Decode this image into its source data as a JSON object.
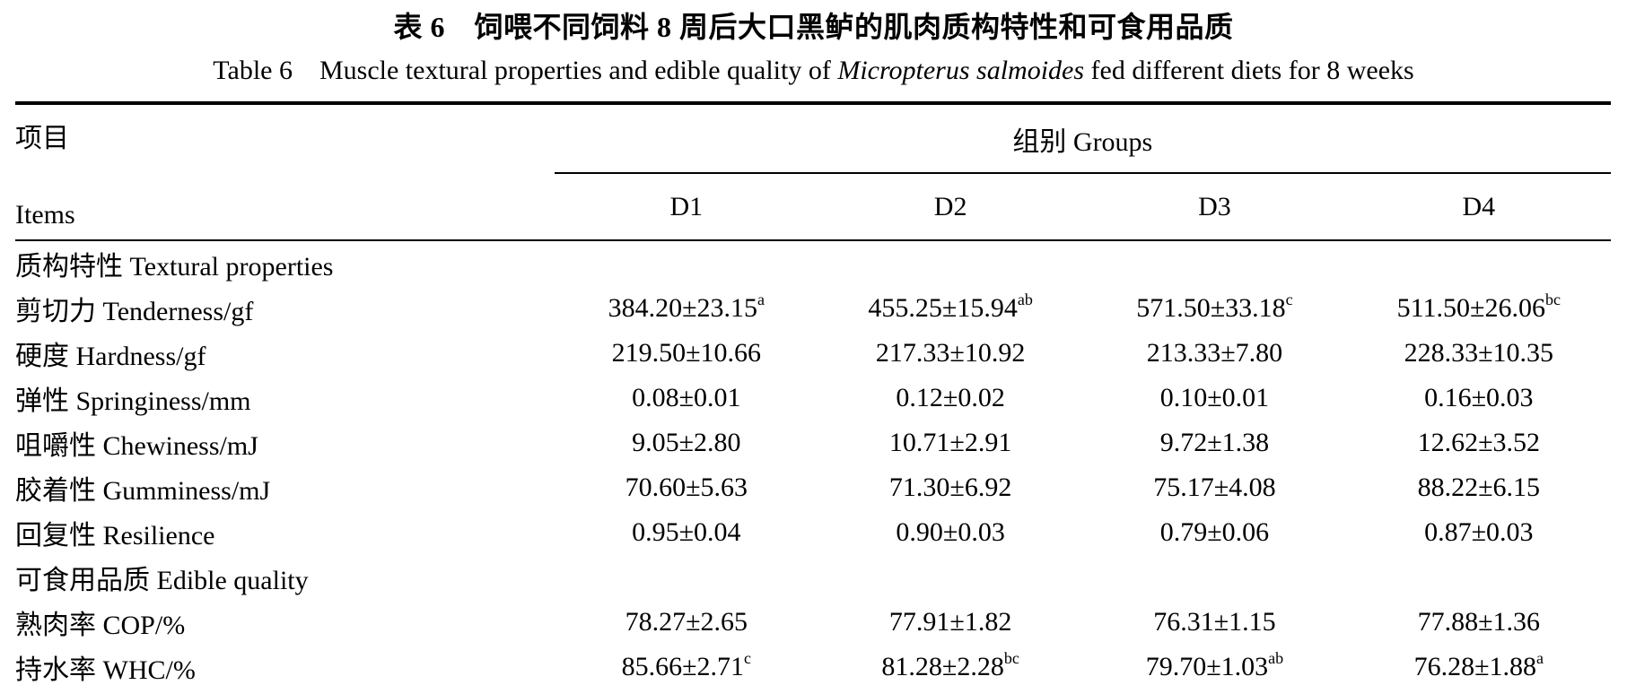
{
  "title": {
    "zh": "表 6 饲喂不同饲料 8 周后大口黑鲈的肌肉质构特性和可食用品质",
    "en_prefix": "Table 6 Muscle textural properties and edible quality of ",
    "en_species": "Micropterus salmoides",
    "en_suffix": " fed different diets for 8 weeks"
  },
  "colors": {
    "text": "#000000",
    "background": "#ffffff",
    "rule": "#000000"
  },
  "table": {
    "items_header_zh": "项目",
    "items_header_en": "Items",
    "groups_header": "组别 Groups",
    "columns": [
      "D1",
      "D2",
      "D3",
      "D4"
    ],
    "rows": [
      {
        "type": "section",
        "label": "质构特性 Textural properties"
      },
      {
        "type": "data",
        "label": "剪切力 Tenderness/gf",
        "values": [
          {
            "v": "384.20±23.15",
            "sup": "a"
          },
          {
            "v": "455.25±15.94",
            "sup": "ab"
          },
          {
            "v": "571.50±33.18",
            "sup": "c"
          },
          {
            "v": "511.50±26.06",
            "sup": "bc"
          }
        ]
      },
      {
        "type": "data",
        "label": "硬度 Hardness/gf",
        "values": [
          {
            "v": "219.50±10.66",
            "sup": ""
          },
          {
            "v": "217.33±10.92",
            "sup": ""
          },
          {
            "v": "213.33±7.80",
            "sup": ""
          },
          {
            "v": "228.33±10.35",
            "sup": ""
          }
        ]
      },
      {
        "type": "data",
        "label": "弹性 Springiness/mm",
        "values": [
          {
            "v": "0.08±0.01",
            "sup": ""
          },
          {
            "v": "0.12±0.02",
            "sup": ""
          },
          {
            "v": "0.10±0.01",
            "sup": ""
          },
          {
            "v": "0.16±0.03",
            "sup": ""
          }
        ]
      },
      {
        "type": "data",
        "label": "咀嚼性 Chewiness/mJ",
        "values": [
          {
            "v": "9.05±2.80",
            "sup": ""
          },
          {
            "v": "10.71±2.91",
            "sup": ""
          },
          {
            "v": "9.72±1.38",
            "sup": ""
          },
          {
            "v": "12.62±3.52",
            "sup": ""
          }
        ]
      },
      {
        "type": "data",
        "label": "胶着性 Gumminess/mJ",
        "values": [
          {
            "v": "70.60±5.63",
            "sup": ""
          },
          {
            "v": "71.30±6.92",
            "sup": ""
          },
          {
            "v": "75.17±4.08",
            "sup": ""
          },
          {
            "v": "88.22±6.15",
            "sup": ""
          }
        ]
      },
      {
        "type": "data",
        "label": "回复性 Resilience",
        "values": [
          {
            "v": "0.95±0.04",
            "sup": ""
          },
          {
            "v": "0.90±0.03",
            "sup": ""
          },
          {
            "v": "0.79±0.06",
            "sup": ""
          },
          {
            "v": "0.87±0.03",
            "sup": ""
          }
        ]
      },
      {
        "type": "section",
        "label": "可食用品质 Edible quality"
      },
      {
        "type": "data",
        "label": "熟肉率 COP/%",
        "values": [
          {
            "v": "78.27±2.65",
            "sup": ""
          },
          {
            "v": "77.91±1.82",
            "sup": ""
          },
          {
            "v": "76.31±1.15",
            "sup": ""
          },
          {
            "v": "77.88±1.36",
            "sup": ""
          }
        ]
      },
      {
        "type": "data",
        "label": "持水率 WHC/%",
        "values": [
          {
            "v": "85.66±2.71",
            "sup": "c"
          },
          {
            "v": "81.28±2.28",
            "sup": "bc"
          },
          {
            "v": "79.70±1.03",
            "sup": "ab"
          },
          {
            "v": "76.28±1.88",
            "sup": "a"
          }
        ]
      }
    ]
  }
}
